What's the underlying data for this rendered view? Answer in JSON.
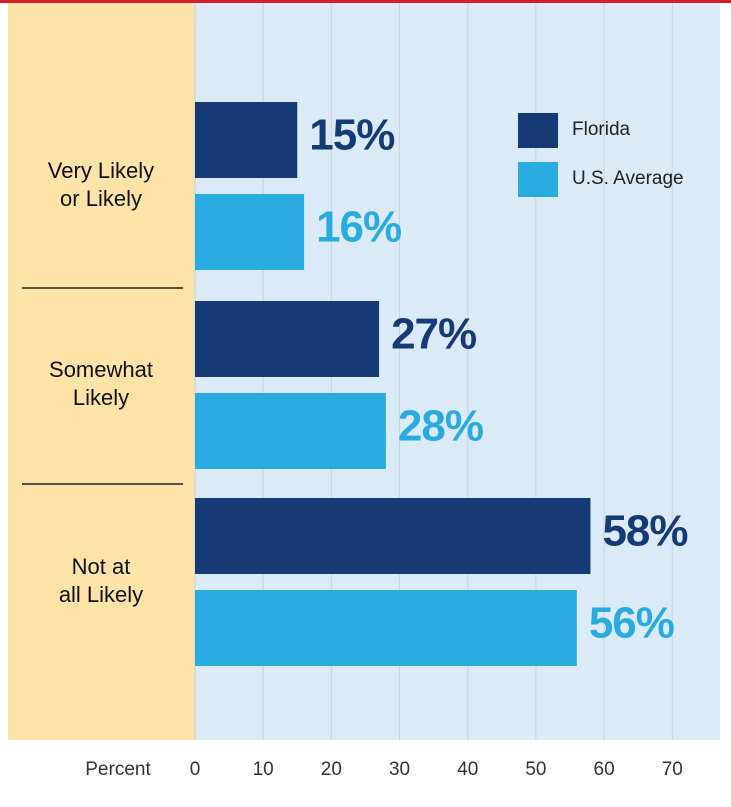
{
  "chart_data": {
    "type": "bar",
    "orientation": "horizontal",
    "categories": [
      [
        "Very Likely",
        "or Likely"
      ],
      [
        "Somewhat",
        "Likely"
      ],
      [
        "Not at",
        "all Likely"
      ]
    ],
    "series": [
      {
        "name": "Florida",
        "color": "#163a75",
        "values": [
          15,
          27,
          58
        ],
        "value_labels": [
          "15%",
          "27%",
          "58%"
        ]
      },
      {
        "name": "U.S. Average",
        "color": "#29abe2",
        "values": [
          16,
          28,
          56
        ],
        "value_labels": [
          "16%",
          "28%",
          "56%"
        ]
      }
    ],
    "xlabel": "Percent",
    "xlim": [
      0,
      77
    ],
    "xticks": [
      0,
      10,
      20,
      30,
      40,
      50,
      60,
      70
    ],
    "grid": true,
    "legend": "upper right"
  }
}
